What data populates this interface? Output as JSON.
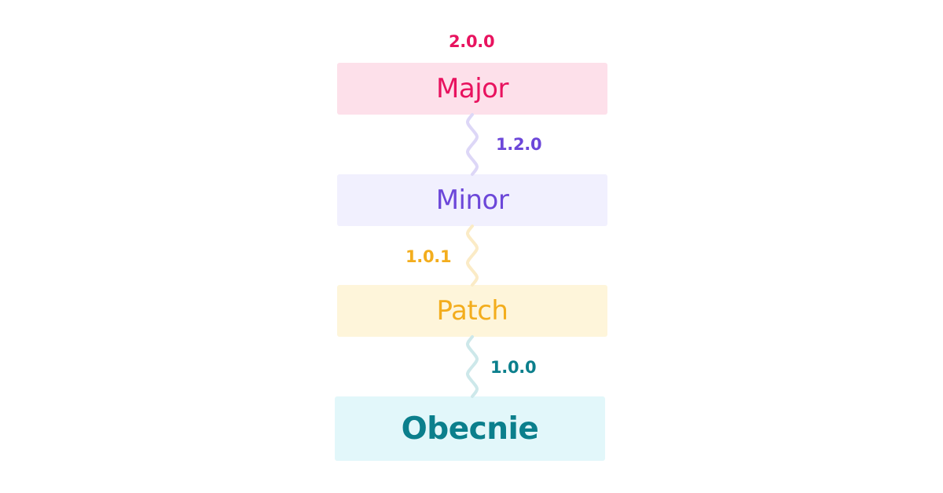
{
  "levels": [
    {
      "label": "Major",
      "version": "2.0.0",
      "text_color": "#e8135f",
      "bg_color": "#fde0ea"
    },
    {
      "label": "Minor",
      "version": "1.2.0",
      "text_color": "#6c47d9",
      "bg_color": "#f1f0fe"
    },
    {
      "label": "Patch",
      "version": "1.0.1",
      "text_color": "#f3ad1d",
      "bg_color": "#fef5da"
    },
    {
      "label": "Obecnie",
      "version": "1.0.0",
      "text_color": "#0b7f8c",
      "bg_color": "#e2f7fa"
    }
  ],
  "connector_colors": [
    "#ddd7f7",
    "#fbebc6",
    "#cde8ea"
  ]
}
